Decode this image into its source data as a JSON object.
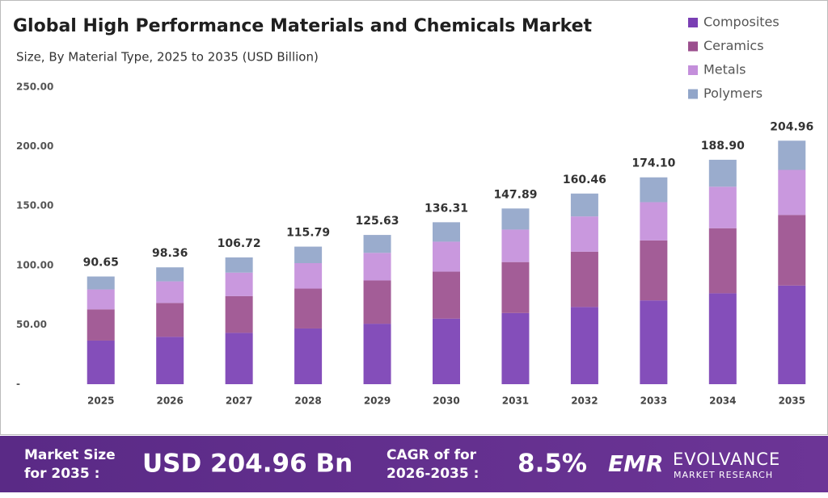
{
  "chart_data": {
    "type": "stacked_bar",
    "title": "Global High Performance Materials and Chemicals Market",
    "subtitle": "Size, By Material Type, 2025 to 2035 (USD Billion)",
    "categories": [
      "2025",
      "2026",
      "2027",
      "2028",
      "2029",
      "2030",
      "2031",
      "2032",
      "2033",
      "2034",
      "2035"
    ],
    "series": [
      {
        "name": "Composites",
        "color": "#7a3fb4",
        "values": [
          36.71,
          39.84,
          43.22,
          46.9,
          50.88,
          55.21,
          59.9,
          64.99,
          70.51,
          76.5,
          83.01
        ]
      },
      {
        "name": "Ceramics",
        "color": "#9b4f8e",
        "values": [
          26.29,
          28.52,
          30.95,
          33.58,
          36.43,
          39.53,
          42.89,
          46.53,
          50.49,
          54.78,
          59.44
        ]
      },
      {
        "name": "Metals",
        "color": "#c48fdb",
        "values": [
          16.77,
          18.2,
          19.74,
          21.42,
          23.24,
          25.22,
          27.36,
          29.69,
          32.21,
          34.95,
          37.92
        ]
      },
      {
        "name": "Polymers",
        "color": "#91a5c9",
        "values": [
          10.88,
          11.8,
          12.81,
          13.89,
          15.08,
          16.35,
          17.74,
          19.25,
          20.89,
          22.67,
          24.59
        ]
      }
    ],
    "totals": [
      90.65,
      98.36,
      106.72,
      115.79,
      125.63,
      136.31,
      147.89,
      160.46,
      174.1,
      188.9,
      204.96
    ],
    "total_labels": [
      "90.65",
      "98.36",
      "106.72",
      "115.79",
      "125.63",
      "136.31",
      "147.89",
      "160.46",
      "174.10",
      "188.90",
      "204.96"
    ],
    "ylim": [
      0,
      250
    ],
    "yticks": [
      {
        "value": 0,
        "label": "-"
      },
      {
        "value": 50,
        "label": "50.00"
      },
      {
        "value": 100,
        "label": "100.00"
      },
      {
        "value": 150,
        "label": "150.00"
      },
      {
        "value": 200,
        "label": "200.00"
      },
      {
        "value": 250,
        "label": "250.00"
      }
    ],
    "grid": false,
    "legend": "top-right"
  },
  "footer": {
    "market_size_label": [
      "Market Size",
      "for 2035 :"
    ],
    "market_size_value": "USD 204.96 Bn",
    "cagr_label": [
      "CAGR of for",
      "2026-2035 :"
    ],
    "cagr_value": "8.5%",
    "logo_mark": "EMR",
    "logo_name": "EVOLVANCE",
    "logo_tagline": "MARKET RESEARCH"
  }
}
